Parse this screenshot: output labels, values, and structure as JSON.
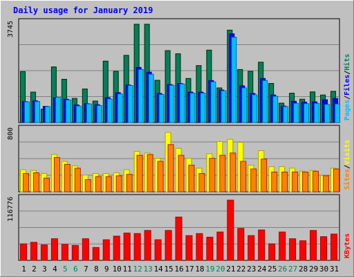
{
  "title": "Daily usage for January 2019",
  "colors": {
    "background": "#c0c0c0",
    "title": "#0000ff",
    "hits": "#00805c",
    "files": "#0000ff",
    "pages": "#00c0ff",
    "visits": "#ffff00",
    "sites": "#ff8000",
    "kbytes": "#ff0000",
    "weekend_label": "#00805c",
    "weekday_label": "#000000"
  },
  "chart_data": [
    {
      "type": "bar",
      "name": "hits-files-pages",
      "ymax_label": "3745",
      "ymax": 3745,
      "legend": [
        "Pages",
        "/",
        "Files",
        "/",
        "Hits"
      ],
      "series": [
        {
          "name": "Hits",
          "values": [
            1940,
            1160,
            510,
            2120,
            1650,
            920,
            1280,
            820,
            2340,
            1950,
            2560,
            3745,
            3745,
            1610,
            2740,
            2620,
            1680,
            2170,
            2760,
            1320,
            3520,
            2020,
            1950,
            2300,
            1490,
            740,
            1120,
            890,
            1170,
            1050,
            1190
          ]
        },
        {
          "name": "Files",
          "values": [
            800,
            830,
            620,
            950,
            890,
            670,
            720,
            680,
            950,
            1140,
            1430,
            2100,
            1920,
            1110,
            1450,
            1490,
            1160,
            1160,
            1600,
            1240,
            3380,
            1400,
            1110,
            1680,
            1050,
            630,
            810,
            780,
            790,
            870,
            920
          ]
        },
        {
          "name": "Pages",
          "values": [
            790,
            800,
            610,
            960,
            860,
            630,
            710,
            650,
            900,
            1090,
            1410,
            2020,
            1840,
            1070,
            1420,
            1470,
            1120,
            1120,
            1550,
            1210,
            3250,
            1320,
            1060,
            1600,
            1000,
            610,
            730,
            720,
            730,
            690,
            710
          ]
        }
      ],
      "categories": [
        "1",
        "2",
        "3",
        "4",
        "5",
        "6",
        "7",
        "8",
        "9",
        "10",
        "11",
        "12",
        "13",
        "14",
        "15",
        "16",
        "17",
        "18",
        "19",
        "20",
        "21",
        "22",
        "23",
        "24",
        "25",
        "26",
        "27",
        "28",
        "29",
        "30",
        "31"
      ],
      "weekend_days": [
        5,
        6,
        12,
        13,
        19,
        20,
        26,
        27
      ]
    },
    {
      "type": "bar",
      "name": "visits-sites",
      "ymax_label": "800",
      "ymax": 800,
      "legend": [
        "Sites",
        "/",
        "Visits"
      ],
      "series": [
        {
          "name": "Visits",
          "values": [
            290,
            280,
            240,
            490,
            400,
            340,
            220,
            240,
            240,
            250,
            290,
            530,
            510,
            440,
            780,
            570,
            440,
            310,
            500,
            660,
            690,
            650,
            350,
            540,
            330,
            330,
            310,
            270,
            280,
            215,
            310
          ]
        },
        {
          "name": "Sites",
          "values": [
            240,
            250,
            180,
            450,
            360,
            310,
            160,
            200,
            200,
            210,
            230,
            480,
            490,
            400,
            620,
            480,
            350,
            240,
            440,
            480,
            510,
            400,
            300,
            430,
            260,
            260,
            260,
            260,
            270,
            210,
            300
          ]
        }
      ]
    },
    {
      "type": "bar",
      "name": "kbytes",
      "ymax_label": "116776",
      "ymax": 116776,
      "legend": [
        "KBytes"
      ],
      "series": [
        {
          "name": "KBytes",
          "values": [
            32000,
            35000,
            30000,
            42000,
            31000,
            29000,
            42000,
            25000,
            40000,
            47000,
            53000,
            52000,
            58000,
            40000,
            58000,
            84000,
            48000,
            52000,
            45000,
            55000,
            116776,
            62000,
            48000,
            59000,
            32000,
            55000,
            42000,
            38000,
            58000,
            46000,
            51000
          ]
        }
      ]
    }
  ]
}
